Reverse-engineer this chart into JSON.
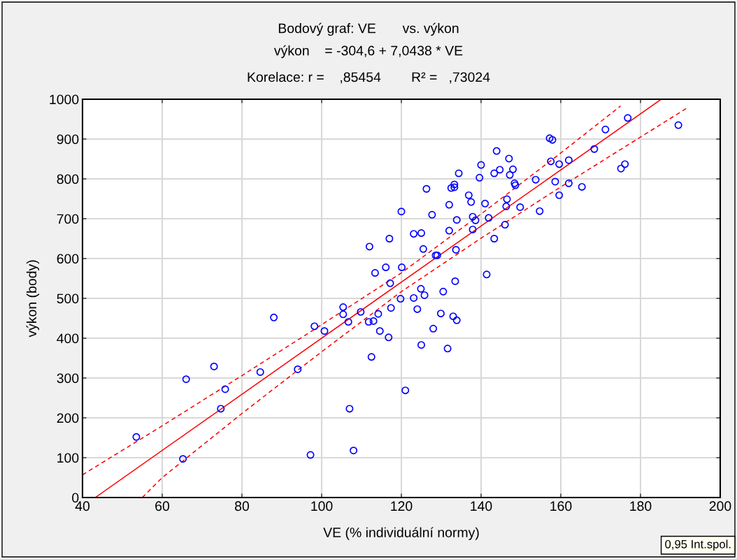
{
  "chart_data": {
    "type": "scatter",
    "title": "Bodový graf: VE       vs. výkon",
    "subtitle": "výkon    = -304,6 + 7,0438 * VE\nKorelace: r =    ,85454        R² =   ,73024",
    "xlabel": "VE (% individuální normy)",
    "ylabel": "výkon (body)",
    "annotations": [
      "0,95 Int.spol."
    ],
    "xlim": [
      40,
      200
    ],
    "xticks": [
      40,
      60,
      80,
      100,
      120,
      140,
      160,
      180,
      200
    ],
    "ylim": [
      0,
      1000
    ],
    "yticks": [
      0,
      100,
      200,
      300,
      400,
      500,
      600,
      700,
      800,
      900,
      1000
    ],
    "grid": true,
    "series": [
      {
        "color": "#0000ff",
        "marker": "circle",
        "x": [
          53.5,
          65.2,
          66,
          73,
          74.7,
          75.8,
          84.6,
          88,
          94,
          97.2,
          98.2,
          100.7,
          105.4,
          105.4,
          107,
          106.7,
          108,
          109.8,
          112,
          112.5,
          111.8,
          113,
          113.4,
          114.2,
          114.6,
          116.1,
          117,
          117.2,
          117.4,
          116.8,
          120,
          119.8,
          120.1,
          121,
          123.1,
          123.1,
          124,
          125,
          124.9,
          125,
          125.5,
          125.8,
          126.3,
          127.7,
          128,
          128.6,
          129,
          129.9,
          130.5,
          131.6,
          132,
          132,
          132.5,
          133,
          133.3,
          133.3,
          133.5,
          133.7,
          133.9,
          133.9,
          134.4,
          136.9,
          137.5,
          137.9,
          137.9,
          138.6,
          139.6,
          140,
          141,
          141.4,
          141.9,
          143.3,
          143.3,
          143.9,
          144.7,
          146,
          146.3,
          146.5,
          147,
          147.2,
          148,
          148.4,
          148.6,
          149.8,
          153.7,
          154.7,
          157.2,
          157.5,
          157.9,
          158.6,
          159.6,
          159.6,
          162,
          162,
          165.3,
          168.4,
          171.2,
          175.1,
          176.1,
          176.8,
          189.5
        ],
        "values": [
          152,
          97,
          297,
          329,
          223,
          272,
          315,
          452,
          322,
          107,
          430,
          418,
          478,
          460,
          223,
          441,
          118,
          466,
          630,
          353,
          441,
          443,
          564,
          461,
          418,
          578,
          650,
          538,
          476,
          402,
          718,
          499,
          578,
          269,
          662,
          501,
          473,
          664,
          524,
          383,
          624,
          508,
          775,
          710,
          424,
          608,
          608,
          462,
          517,
          374,
          735,
          670,
          777,
          455,
          786,
          779,
          543,
          622,
          697,
          445,
          814,
          759,
          742,
          705,
          673,
          696,
          803,
          835,
          738,
          560,
          702,
          814,
          650,
          870,
          823,
          685,
          731,
          749,
          851,
          810,
          824,
          789,
          784,
          729,
          798,
          719,
          902,
          844,
          898,
          793,
          759,
          837,
          847,
          789,
          780,
          875,
          924,
          826,
          837,
          953,
          935
        ]
      },
      {
        "type": "line",
        "color": "#ff0000",
        "line_style": "solid",
        "marker": "none",
        "x": [
          43.2,
          185.2
        ],
        "values": [
          0,
          1000
        ]
      },
      {
        "type": "line",
        "color": "#ff0000",
        "line_style": "dashed",
        "marker": "none",
        "x": [
          40,
          60,
          80,
          100,
          120,
          140,
          160,
          175
        ],
        "values": [
          57,
          180,
          306,
          434,
          564,
          712,
          865,
          983
        ]
      },
      {
        "type": "line",
        "color": "#ff0000",
        "line_style": "dashed",
        "marker": "none",
        "x": [
          55,
          60,
          80,
          100,
          120,
          140,
          160,
          180,
          192
        ],
        "values": [
          0,
          50,
          211,
          366,
          517,
          651,
          780,
          905,
          980
        ]
      }
    ]
  }
}
